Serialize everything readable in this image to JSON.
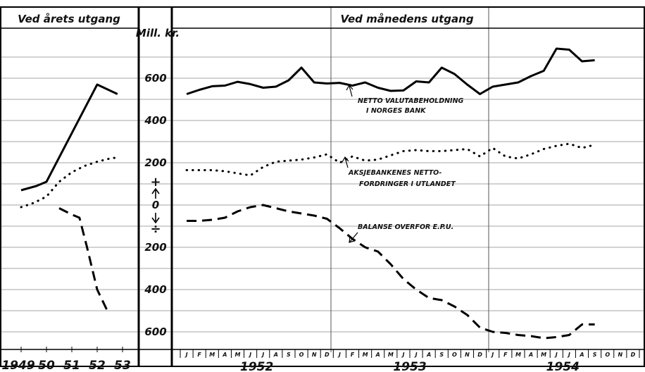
{
  "chart_data": {
    "type": "line",
    "panels": {
      "annual": {
        "header": "Ved årets utgang",
        "x": [
          "1949",
          "50",
          "51",
          "52",
          "53"
        ]
      },
      "monthly": {
        "header": "Ved månedens utgang",
        "months": [
          "J",
          "F",
          "M",
          "A",
          "M",
          "J",
          "J",
          "A",
          "S",
          "O",
          "N",
          "D"
        ],
        "years": [
          "1952",
          "1953",
          "1954"
        ]
      }
    },
    "y_unit_label": "Mill. kr.",
    "y_ticks": [
      "600",
      "400",
      "200",
      "0",
      "200",
      "400",
      "600"
    ],
    "y_sign_up": "+",
    "y_sign_down": "÷",
    "ylim": [
      -620,
      750
    ],
    "grid": true,
    "series": [
      {
        "label": "NETTO VALUTABEHOLDNING I NORGES BANK",
        "label_lines": [
          "NETTO VALUTABEHOLDNING",
          "I NORGES BANK"
        ],
        "style": "solid",
        "annual": [
          70,
          110,
          null,
          570,
          525
        ],
        "annual_interp": [
          [
            1949,
            70
          ],
          [
            1949.6,
            90
          ],
          [
            1950,
            110
          ],
          [
            1952,
            570
          ],
          [
            1952.8,
            525
          ]
        ],
        "monthly": [
          525,
          545,
          562,
          565,
          583,
          572,
          555,
          560,
          590,
          650,
          580,
          575,
          578,
          565,
          580,
          555,
          540,
          542,
          585,
          580,
          650,
          620,
          570,
          525,
          560,
          570,
          580,
          610,
          635,
          740,
          735,
          680,
          685,
          null,
          null,
          null
        ]
      },
      {
        "label": "AKSJEBANKENES NETTO-FORDRINGER I UTLANDET",
        "label_lines": [
          "AKSJEBANKENES NETTO-",
          "FORDRINGER I UTLANDET"
        ],
        "style": "dotted",
        "annual_interp": [
          [
            1949,
            -10
          ],
          [
            1949.5,
            10
          ],
          [
            1950,
            40
          ],
          [
            1950.5,
            110
          ],
          [
            1951,
            155
          ],
          [
            1951.5,
            185
          ],
          [
            1952,
            205
          ],
          [
            1952.5,
            220
          ],
          [
            1952.8,
            225
          ]
        ],
        "monthly": [
          165,
          165,
          165,
          160,
          150,
          140,
          180,
          205,
          210,
          215,
          225,
          240,
          200,
          230,
          210,
          215,
          235,
          255,
          260,
          255,
          255,
          260,
          265,
          230,
          270,
          230,
          220,
          240,
          265,
          280,
          290,
          270,
          285,
          null,
          null,
          null
        ]
      },
      {
        "label": "BALANSE OVERFOR E.P.U.",
        "label_lines": [
          "BALANSE OVERFOR E.P.U."
        ],
        "style": "dashed",
        "annual_interp": [
          [
            1950.5,
            -15
          ],
          [
            1951,
            -45
          ],
          [
            1951.3,
            -60
          ],
          [
            1951.6,
            -200
          ],
          [
            1952,
            -400
          ],
          [
            1952.4,
            -500
          ]
        ],
        "monthly": [
          -75,
          -75,
          -70,
          -60,
          -30,
          -10,
          0,
          -15,
          -30,
          -40,
          -50,
          -65,
          -110,
          -160,
          -200,
          -220,
          -280,
          -350,
          -400,
          -440,
          -450,
          -480,
          -520,
          -580,
          -600,
          -605,
          -615,
          -620,
          -630,
          -625,
          -615,
          -565,
          -565,
          null,
          null,
          null
        ]
      }
    ]
  }
}
